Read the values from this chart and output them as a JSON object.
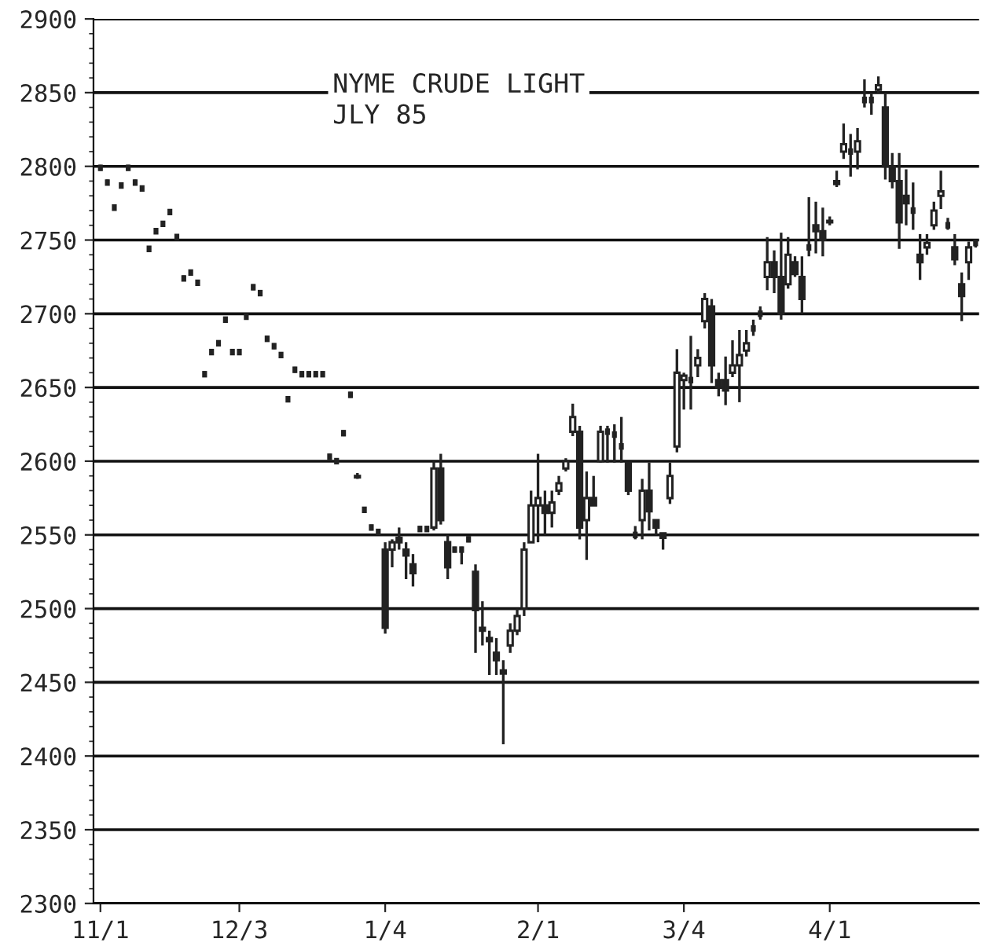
{
  "chart_data": {
    "type": "candlestick",
    "title": "NYME CRUDE LIGHT",
    "subtitle": "JLY 85",
    "categories": [
      "11/1",
      null,
      null,
      null,
      null,
      null,
      null,
      null,
      null,
      null,
      null,
      null,
      null,
      null,
      null,
      null,
      null,
      null,
      null,
      null,
      "12/3",
      null,
      null,
      null,
      null,
      null,
      null,
      null,
      null,
      null,
      null,
      null,
      null,
      null,
      null,
      null,
      null,
      null,
      null,
      null,
      null,
      "1/4",
      null,
      null,
      null,
      null,
      null,
      null,
      null,
      null,
      null,
      null,
      null,
      null,
      null,
      null,
      null,
      null,
      null,
      null,
      null,
      null,
      null,
      "2/1",
      null,
      null,
      null,
      null,
      null,
      null,
      null,
      null,
      null,
      null,
      null,
      null,
      null,
      null,
      null,
      null,
      null,
      null,
      null,
      null,
      "3/4",
      null,
      null,
      null,
      null,
      null,
      null,
      null,
      null,
      null,
      null,
      null,
      null,
      null,
      null,
      null,
      null,
      null,
      null,
      null,
      null,
      "4/1",
      null,
      null,
      null,
      null,
      null,
      null,
      null,
      null,
      null,
      null,
      null,
      null,
      null,
      null,
      null,
      null,
      null,
      null,
      null,
      null,
      null
    ],
    "ohlc": [
      [
        2799,
        2801,
        2797,
        2799
      ],
      [
        2789,
        2791,
        2787,
        2789
      ],
      [
        2772,
        2774,
        2770,
        2772
      ],
      [
        2787,
        2789,
        2785,
        2787
      ],
      [
        2799,
        2801,
        2797,
        2799
      ],
      [
        2789,
        2791,
        2787,
        2789
      ],
      [
        2785,
        2787,
        2783,
        2785
      ],
      [
        2744,
        2746,
        2742,
        2744
      ],
      [
        2756,
        2758,
        2754,
        2756
      ],
      [
        2761,
        2763,
        2759,
        2761
      ],
      [
        2769,
        2771,
        2767,
        2769
      ],
      [
        2752,
        2754,
        2750,
        2752
      ],
      [
        2724,
        2726,
        2722,
        2724
      ],
      [
        2728,
        2730,
        2726,
        2728
      ],
      [
        2721,
        2723,
        2719,
        2721
      ],
      [
        2659,
        2661,
        2657,
        2659
      ],
      [
        2674,
        2676,
        2672,
        2674
      ],
      [
        2680,
        2682,
        2678,
        2680
      ],
      [
        2696,
        2698,
        2694,
        2696
      ],
      [
        2674,
        2676,
        2672,
        2674
      ],
      [
        2674,
        2676,
        2672,
        2674
      ],
      [
        2698,
        2700,
        2696,
        2698
      ],
      [
        2718,
        2720,
        2716,
        2718
      ],
      [
        2714,
        2716,
        2712,
        2714
      ],
      [
        2683,
        2685,
        2681,
        2683
      ],
      [
        2678,
        2680,
        2676,
        2678
      ],
      [
        2672,
        2674,
        2670,
        2672
      ],
      [
        2642,
        2644,
        2640,
        2642
      ],
      [
        2662,
        2664,
        2660,
        2662
      ],
      [
        2659,
        2661,
        2657,
        2659
      ],
      [
        2659,
        2661,
        2657,
        2659
      ],
      [
        2659,
        2661,
        2657,
        2659
      ],
      [
        2659,
        2661,
        2657,
        2659
      ],
      [
        2603,
        2605,
        2601,
        2603
      ],
      [
        2600,
        2602,
        2598,
        2600
      ],
      [
        2619,
        2621,
        2617,
        2619
      ],
      [
        2645,
        2647,
        2643,
        2645
      ],
      [
        2590,
        2592,
        2588,
        2589
      ],
      [
        2567,
        2569,
        2565,
        2567
      ],
      [
        2555,
        2557,
        2553,
        2555
      ],
      [
        2552,
        2554,
        2550,
        2552
      ],
      [
        2540,
        2545,
        2483,
        2487
      ],
      [
        2540,
        2547,
        2528,
        2545
      ],
      [
        2548,
        2555,
        2540,
        2545
      ],
      [
        2540,
        2545,
        2520,
        2536
      ],
      [
        2530,
        2537,
        2515,
        2524
      ],
      [
        2554,
        2556,
        2552,
        2554
      ],
      [
        2554,
        2556,
        2552,
        2554
      ],
      [
        2555,
        2600,
        2553,
        2595
      ],
      [
        2595,
        2605,
        2557,
        2560
      ],
      [
        2545,
        2550,
        2520,
        2528
      ],
      [
        2540,
        2542,
        2538,
        2540
      ],
      [
        2540,
        2542,
        2530,
        2540
      ],
      [
        2547,
        2549,
        2545,
        2547
      ],
      [
        2525,
        2530,
        2470,
        2499
      ],
      [
        2487,
        2505,
        2475,
        2485
      ],
      [
        2480,
        2485,
        2455,
        2478
      ],
      [
        2470,
        2480,
        2455,
        2465
      ],
      [
        2458,
        2465,
        2408,
        2456
      ],
      [
        2475,
        2490,
        2470,
        2485
      ],
      [
        2485,
        2500,
        2482,
        2495
      ],
      [
        2500,
        2545,
        2495,
        2540
      ],
      [
        2545,
        2580,
        2545,
        2570
      ],
      [
        2570,
        2605,
        2545,
        2575
      ],
      [
        2570,
        2580,
        2550,
        2565
      ],
      [
        2565,
        2580,
        2555,
        2572
      ],
      [
        2580,
        2590,
        2577,
        2585
      ],
      [
        2595,
        2602,
        2593,
        2600
      ],
      [
        2620,
        2639,
        2617,
        2630
      ],
      [
        2620,
        2624,
        2547,
        2555
      ],
      [
        2560,
        2593,
        2533,
        2575
      ],
      [
        2575,
        2590,
        2570,
        2570
      ],
      [
        2600,
        2624,
        2599,
        2620
      ],
      [
        2620,
        2624,
        2599,
        2620
      ],
      [
        2618,
        2625,
        2599,
        2618
      ],
      [
        2610,
        2630,
        2599,
        2610
      ],
      [
        2599,
        2599,
        2577,
        2580
      ],
      [
        2550,
        2556,
        2547,
        2550
      ],
      [
        2560,
        2588,
        2547,
        2580
      ],
      [
        2580,
        2599,
        2553,
        2566
      ],
      [
        2560,
        2560,
        2550,
        2555
      ],
      [
        2551,
        2551,
        2540,
        2548
      ],
      [
        2575,
        2599,
        2571,
        2590
      ],
      [
        2610,
        2676,
        2606,
        2660
      ],
      [
        2655,
        2660,
        2635,
        2658
      ],
      [
        2655,
        2685,
        2635,
        2655
      ],
      [
        2665,
        2676,
        2657,
        2670
      ],
      [
        2695,
        2714,
        2690,
        2710
      ],
      [
        2705,
        2710,
        2653,
        2665
      ],
      [
        2655,
        2660,
        2644,
        2650
      ],
      [
        2655,
        2671,
        2638,
        2648
      ],
      [
        2660,
        2682,
        2657,
        2665
      ],
      [
        2665,
        2689,
        2640,
        2672
      ],
      [
        2675,
        2689,
        2671,
        2680
      ],
      [
        2690,
        2696,
        2685,
        2690
      ],
      [
        2700,
        2705,
        2696,
        2700
      ],
      [
        2725,
        2752,
        2716,
        2735
      ],
      [
        2735,
        2743,
        2714,
        2725
      ],
      [
        2725,
        2755,
        2696,
        2700
      ],
      [
        2720,
        2752,
        2717,
        2740
      ],
      [
        2735,
        2739,
        2725,
        2727
      ],
      [
        2725,
        2739,
        2700,
        2710
      ],
      [
        2745,
        2779,
        2739,
        2745
      ],
      [
        2760,
        2776,
        2741,
        2756
      ],
      [
        2756,
        2772,
        2739,
        2750
      ],
      [
        2762,
        2766,
        2760,
        2763
      ],
      [
        2790,
        2797,
        2786,
        2788
      ],
      [
        2810,
        2829,
        2805,
        2815
      ],
      [
        2810,
        2822,
        2793,
        2810
      ],
      [
        2810,
        2826,
        2798,
        2817
      ],
      [
        2845,
        2859,
        2840,
        2845
      ],
      [
        2845,
        2850,
        2835,
        2845
      ],
      [
        2852,
        2861,
        2850,
        2855
      ],
      [
        2840,
        2850,
        2791,
        2800
      ],
      [
        2800,
        2809,
        2785,
        2790
      ],
      [
        2790,
        2809,
        2744,
        2762
      ],
      [
        2780,
        2798,
        2760,
        2775
      ],
      [
        2770,
        2789,
        2757,
        2770
      ],
      [
        2740,
        2754,
        2723,
        2735
      ],
      [
        2745,
        2754,
        2740,
        2748
      ],
      [
        2760,
        2776,
        2757,
        2770
      ],
      [
        2780,
        2797,
        2771,
        2783
      ],
      [
        2760,
        2765,
        2757,
        2760
      ],
      [
        2745,
        2754,
        2733,
        2737
      ],
      [
        2720,
        2728,
        2695,
        2712
      ],
      [
        2735,
        2749,
        2723,
        2745
      ],
      [
        2748,
        2750,
        2745,
        2748
      ]
    ],
    "color": "#222222",
    "ylim": [
      2300,
      2900
    ],
    "yticks": [
      2300,
      2350,
      2400,
      2450,
      2500,
      2550,
      2600,
      2650,
      2700,
      2750,
      2800,
      2850,
      2900
    ],
    "grid": "y"
  }
}
